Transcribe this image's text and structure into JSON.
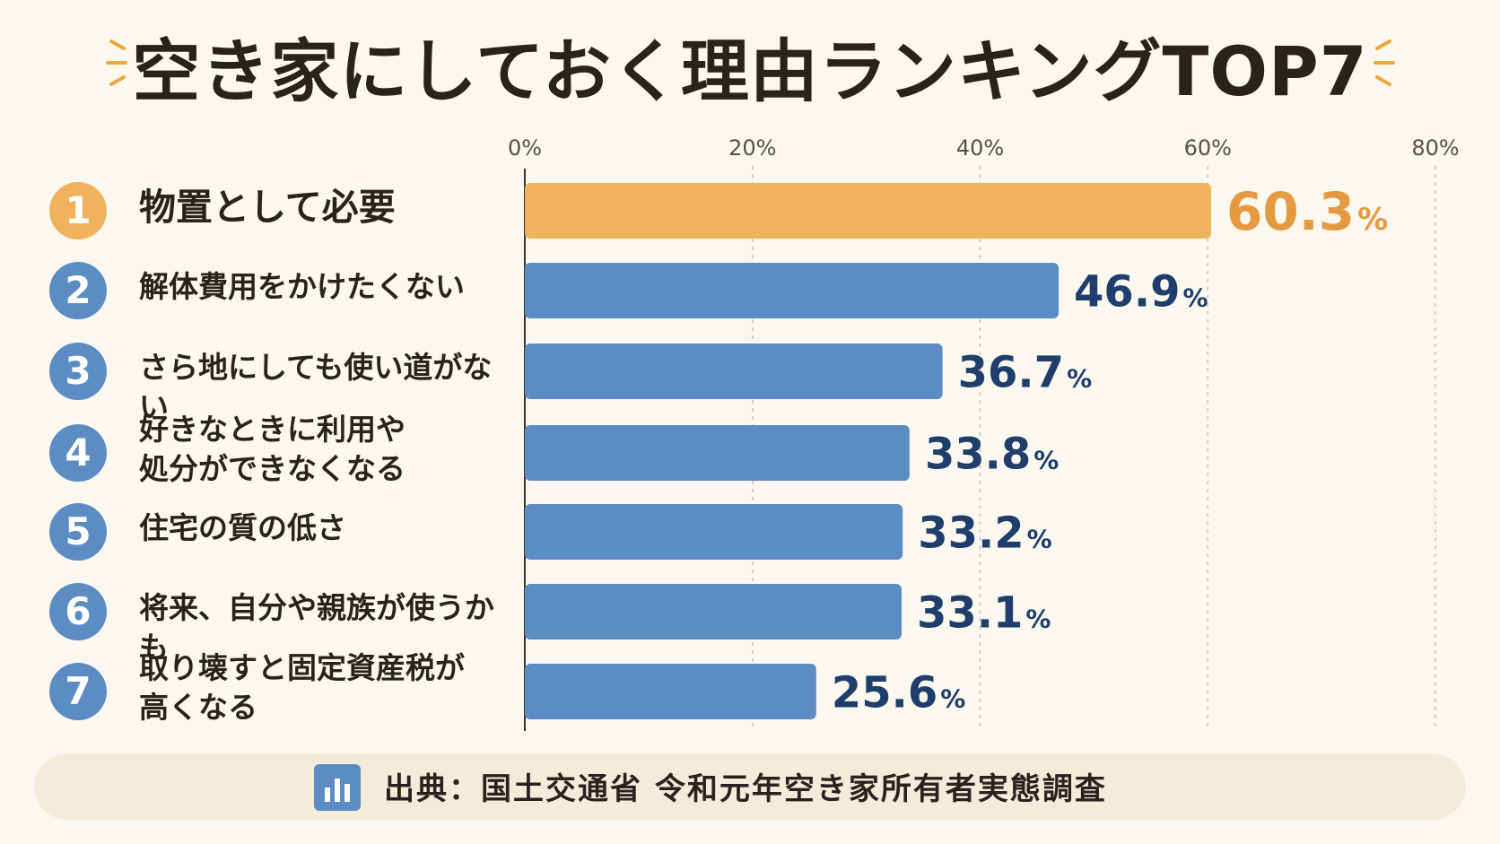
{
  "title": "空き家にしておく理由ランキングTOP7",
  "source": "出典：国土交通省 令和元年空き家所有者実態調査",
  "colors": {
    "highlight": "#efb35d",
    "highlight_text": "#e59a41",
    "bar": "#5c8cc4",
    "value_text": "#1f3e6b",
    "background": "#fbf8f0"
  },
  "chart_data": {
    "type": "bar",
    "orientation": "horizontal",
    "categories": [
      "物置として必要",
      "解体費用をかけたくない",
      "さら地にしても使い道がない",
      "好きなときに利用や\n処分ができなくなる",
      "住宅の質の低さ",
      "将来、自分や親族が使うかも",
      "取り壊すと固定資産税が\n高くなる"
    ],
    "ranks": [
      "1",
      "2",
      "3",
      "4",
      "5",
      "6",
      "7"
    ],
    "values": [
      60.3,
      46.9,
      36.7,
      33.8,
      33.2,
      33.1,
      25.6
    ],
    "value_labels": [
      "60.3",
      "46.9",
      "36.7",
      "33.8",
      "33.2",
      "33.1",
      "25.6"
    ],
    "unit": "%",
    "xlim": [
      0,
      80
    ],
    "ticks": [
      "0%",
      "20%",
      "40%",
      "60%",
      "80%"
    ],
    "tick_values": [
      0,
      20,
      40,
      60,
      80
    ],
    "grid": true,
    "highlight_index": 0
  }
}
